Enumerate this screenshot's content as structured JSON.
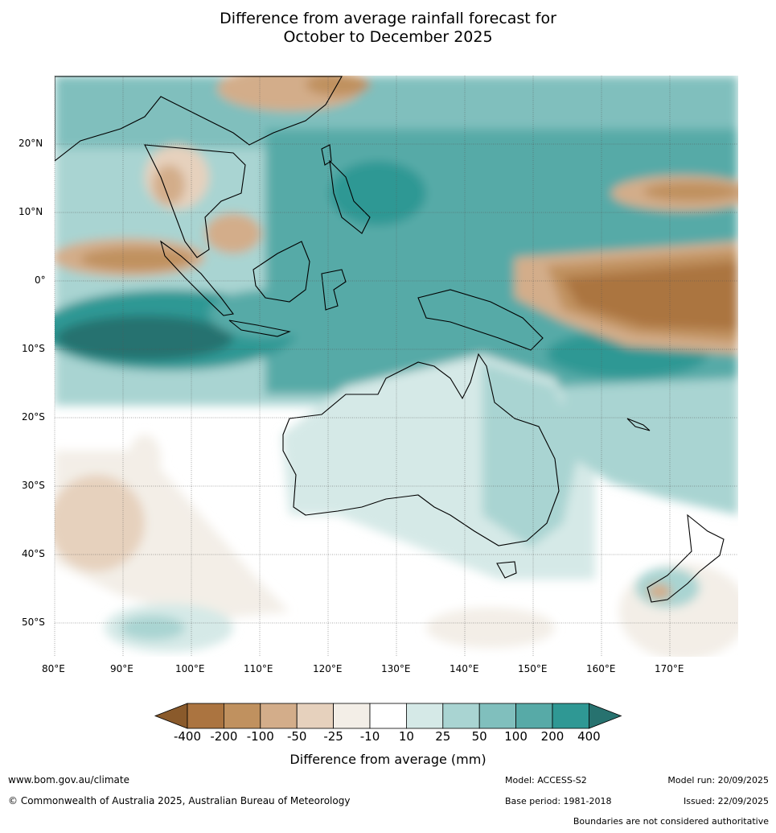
{
  "title": {
    "line1": "Difference from average rainfall forecast for",
    "line2": "October to December 2025"
  },
  "map": {
    "region": "Australia, Indian Ocean and Western Pacific",
    "lat_labels": [
      "20°N",
      "10°N",
      "0°",
      "10°S",
      "20°S",
      "30°S",
      "40°S",
      "50°S"
    ],
    "lat_values": [
      20,
      10,
      0,
      -10,
      -20,
      -30,
      -40,
      -50
    ],
    "lon_labels": [
      "80°E",
      "90°E",
      "100°E",
      "110°E",
      "120°E",
      "130°E",
      "140°E",
      "150°E",
      "160°E",
      "170°E"
    ],
    "lon_values": [
      80,
      90,
      100,
      110,
      120,
      130,
      140,
      150,
      160,
      170
    ]
  },
  "colorbar": {
    "title": "Difference from average (mm)",
    "tick_labels": [
      "-400",
      "-200",
      "-100",
      "-50",
      "-25",
      "-10",
      "10",
      "25",
      "50",
      "100",
      "200",
      "400"
    ],
    "colors": [
      "#8a5a2b",
      "#ab7440",
      "#c0915f",
      "#d3ad8a",
      "#e6d1bd",
      "#f3eee7",
      "#ffffff",
      "#d5e9e7",
      "#a9d4d2",
      "#80bfbd",
      "#57aaa7",
      "#2f9894",
      "#27726f"
    ]
  },
  "footer": {
    "website": "www.bom.gov.au/climate",
    "copyright": "© Commonwealth of Australia 2025, Australian Bureau of Meteorology",
    "model": "Model: ACCESS-S2",
    "base_period": "Base period: 1981-2018",
    "model_run": "Model run: 20/09/2025",
    "issued": "Issued: 22/09/2025",
    "disclaimer": "Boundaries are not considered authoritative"
  },
  "colors": {
    "dry_strong": "#ab7440",
    "wet_strong": "#2f9894",
    "gridline": "#555555"
  }
}
